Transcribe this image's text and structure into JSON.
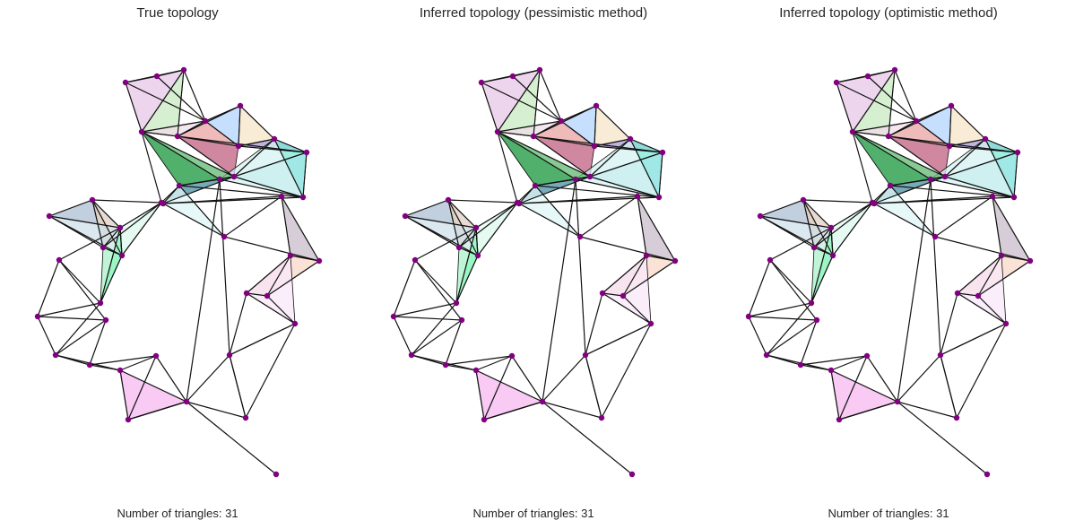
{
  "node_color": "#800080",
  "panels": [
    {
      "title": "True topology",
      "caption": "Number of triangles: 31"
    },
    {
      "title": "Inferred topology (pessimistic method)",
      "caption": "Number of triangles: 31"
    },
    {
      "title": "Inferred topology (optimistic method)",
      "caption": "Number of triangles: 31"
    }
  ],
  "graph": {
    "nodes": [
      {
        "id": "n0"
      },
      {
        "id": "n1"
      },
      {
        "id": "n2"
      },
      {
        "id": "n3"
      },
      {
        "id": "n4"
      },
      {
        "id": "n5"
      },
      {
        "id": "n6"
      },
      {
        "id": "n7"
      },
      {
        "id": "n8"
      },
      {
        "id": "n9"
      },
      {
        "id": "n10"
      },
      {
        "id": "n11"
      },
      {
        "id": "n12"
      },
      {
        "id": "n13"
      },
      {
        "id": "n14"
      },
      {
        "id": "n15"
      },
      {
        "id": "n16"
      },
      {
        "id": "n17"
      },
      {
        "id": "n18"
      },
      {
        "id": "n19"
      },
      {
        "id": "n20"
      },
      {
        "id": "n21"
      },
      {
        "id": "n22"
      },
      {
        "id": "n23"
      },
      {
        "id": "n24"
      },
      {
        "id": "n25"
      },
      {
        "id": "n26"
      },
      {
        "id": "n27"
      },
      {
        "id": "n28"
      },
      {
        "id": "n29"
      },
      {
        "id": "n30"
      },
      {
        "id": "n31"
      },
      {
        "id": "n32"
      },
      {
        "id": "n33"
      },
      {
        "id": "n34"
      },
      {
        "id": "n35"
      },
      {
        "id": "n36"
      },
      {
        "id": "n37"
      },
      {
        "id": "n38"
      },
      {
        "id": "n39"
      },
      {
        "id": "n40"
      },
      {
        "id": "n41"
      },
      {
        "id": "n42"
      },
      {
        "id": "n43"
      }
    ],
    "edges": [
      [
        "n0",
        "n1"
      ],
      [
        "n1",
        "n2"
      ],
      [
        "n0",
        "n2"
      ],
      [
        "n0",
        "n3"
      ],
      [
        "n1",
        "n3"
      ],
      [
        "n2",
        "n3"
      ],
      [
        "n0",
        "n5"
      ],
      [
        "n2",
        "n4"
      ],
      [
        "n2",
        "n5"
      ],
      [
        "n3",
        "n5"
      ],
      [
        "n3",
        "n4"
      ],
      [
        "n3",
        "n6"
      ],
      [
        "n3",
        "n7"
      ],
      [
        "n4",
        "n5"
      ],
      [
        "n4",
        "n6"
      ],
      [
        "n4",
        "n7"
      ],
      [
        "n4",
        "n9"
      ],
      [
        "n4",
        "n10"
      ],
      [
        "n6",
        "n7"
      ],
      [
        "n6",
        "n8"
      ],
      [
        "n7",
        "n8"
      ],
      [
        "n7",
        "n9"
      ],
      [
        "n8",
        "n9"
      ],
      [
        "n8",
        "n10"
      ],
      [
        "n9",
        "n10"
      ],
      [
        "n9",
        "n11"
      ],
      [
        "n8",
        "n11"
      ],
      [
        "n10",
        "n11"
      ],
      [
        "n10",
        "n12"
      ],
      [
        "n10",
        "n13"
      ],
      [
        "n11",
        "n13"
      ],
      [
        "n11",
        "n12"
      ],
      [
        "n5",
        "n12"
      ],
      [
        "n12",
        "n13"
      ],
      [
        "n13",
        "n14"
      ],
      [
        "n10",
        "n14"
      ],
      [
        "n11",
        "n14"
      ],
      [
        "n5",
        "n10"
      ],
      [
        "n14",
        "n15"
      ],
      [
        "n13",
        "n15"
      ],
      [
        "n15",
        "n16"
      ],
      [
        "n14",
        "n16"
      ],
      [
        "n16",
        "n17"
      ],
      [
        "n15",
        "n17"
      ],
      [
        "n17",
        "n18"
      ],
      [
        "n16",
        "n18"
      ],
      [
        "n18",
        "n19"
      ],
      [
        "n17",
        "n19"
      ],
      [
        "n18",
        "n20"
      ],
      [
        "n19",
        "n20"
      ],
      [
        "n20",
        "n21"
      ],
      [
        "n19",
        "n21"
      ],
      [
        "n21",
        "n22"
      ],
      [
        "n20",
        "n22"
      ],
      [
        "n5",
        "n23"
      ],
      [
        "n13",
        "n23"
      ],
      [
        "n23",
        "n24"
      ],
      [
        "n24",
        "n25"
      ],
      [
        "n25",
        "n26"
      ],
      [
        "n24",
        "n26"
      ],
      [
        "n25",
        "n27"
      ],
      [
        "n26",
        "n27"
      ],
      [
        "n24",
        "n27"
      ],
      [
        "n23",
        "n27"
      ],
      [
        "n25",
        "n28"
      ],
      [
        "n26",
        "n28"
      ],
      [
        "n27",
        "n28"
      ],
      [
        "n26",
        "n29"
      ],
      [
        "n28",
        "n29"
      ],
      [
        "n28",
        "n30"
      ],
      [
        "n29",
        "n30"
      ],
      [
        "n29",
        "n31"
      ],
      [
        "n30",
        "n31"
      ],
      [
        "n30",
        "n32"
      ],
      [
        "n31",
        "n32"
      ],
      [
        "n30",
        "n34"
      ],
      [
        "n31",
        "n33"
      ],
      [
        "n32",
        "n33"
      ],
      [
        "n32",
        "n34"
      ],
      [
        "n33",
        "n34"
      ],
      [
        "n33",
        "n35"
      ],
      [
        "n34",
        "n35"
      ],
      [
        "n35",
        "n36"
      ],
      [
        "n34",
        "n36"
      ],
      [
        "n36",
        "n37"
      ],
      [
        "n35",
        "n37"
      ],
      [
        "n36",
        "n38"
      ],
      [
        "n37",
        "n38"
      ],
      [
        "n38",
        "n39"
      ],
      [
        "n37",
        "n39"
      ],
      [
        "n36",
        "n39"
      ],
      [
        "n39",
        "n40"
      ],
      [
        "n22",
        "n40"
      ],
      [
        "n40",
        "n41"
      ],
      [
        "n22",
        "n41"
      ],
      [
        "n21",
        "n41"
      ],
      [
        "n41",
        "n42"
      ],
      [
        "n22",
        "n42"
      ],
      [
        "n21",
        "n42"
      ],
      [
        "n12",
        "n42"
      ],
      [
        "n12",
        "n40"
      ],
      [
        "n40",
        "n43"
      ],
      [
        "n23",
        "n29"
      ],
      [
        "n23",
        "n28"
      ],
      [
        "n24",
        "n28"
      ],
      [
        "n38",
        "n40"
      ]
    ],
    "triangles": [
      {
        "nodes": [
          "n0",
          "n1",
          "n2"
        ],
        "color": "#d4e6b5"
      },
      {
        "nodes": [
          "n0",
          "n2",
          "n5"
        ],
        "color": "#e7c7e8"
      },
      {
        "nodes": [
          "n2",
          "n4",
          "n5"
        ],
        "color": "#c7e9c0"
      },
      {
        "nodes": [
          "n3",
          "n4",
          "n5"
        ],
        "color": "#f0dcea"
      },
      {
        "nodes": [
          "n3",
          "n6",
          "n7"
        ],
        "color": "#b3d4ff"
      },
      {
        "nodes": [
          "n3",
          "n4",
          "n7"
        ],
        "color": "#e9a3a3"
      },
      {
        "nodes": [
          "n4",
          "n7",
          "n10"
        ],
        "color": "#c06080"
      },
      {
        "nodes": [
          "n3",
          "n6",
          "n4"
        ],
        "color": "#b98aa8"
      },
      {
        "nodes": [
          "n6",
          "n7",
          "n8"
        ],
        "color": "#f5e6c8"
      },
      {
        "nodes": [
          "n7",
          "n8",
          "n9"
        ],
        "color": "#a99ad6"
      },
      {
        "nodes": [
          "n8",
          "n9",
          "n11"
        ],
        "color": "#7fe8d8"
      },
      {
        "nodes": [
          "n9",
          "n10",
          "n11"
        ],
        "color": "#9fe6e6"
      },
      {
        "nodes": [
          "n8",
          "n11",
          "n12"
        ],
        "color": "#d6f2f2"
      },
      {
        "nodes": [
          "n5",
          "n10",
          "n13"
        ],
        "color": "#5fb86f"
      },
      {
        "nodes": [
          "n10",
          "n12",
          "n13"
        ],
        "color": "#8fbfa0"
      },
      {
        "nodes": [
          "n5",
          "n12",
          "n13"
        ],
        "color": "#3fa85f"
      },
      {
        "nodes": [
          "n13",
          "n14",
          "n10"
        ],
        "color": "#4a8fa0"
      },
      {
        "nodes": [
          "n14",
          "n15",
          "n13"
        ],
        "color": "#dff5f5"
      },
      {
        "nodes": [
          "n16",
          "n17",
          "n18"
        ],
        "color": "#c9bccb"
      },
      {
        "nodes": [
          "n17",
          "n18",
          "n19"
        ],
        "color": "#f8d8c8"
      },
      {
        "nodes": [
          "n18",
          "n19",
          "n20"
        ],
        "color": "#f3c9c0"
      },
      {
        "nodes": [
          "n18",
          "n20",
          "n21"
        ],
        "color": "#f8e8fa"
      },
      {
        "nodes": [
          "n24",
          "n25",
          "n26"
        ],
        "color": "#aebfd4"
      },
      {
        "nodes": [
          "n24",
          "n26",
          "n27"
        ],
        "color": "#f5ddd0"
      },
      {
        "nodes": [
          "n24",
          "n27",
          "n28"
        ],
        "color": "#d9cfc0"
      },
      {
        "nodes": [
          "n25",
          "n26",
          "n28"
        ],
        "color": "#cfe0ea"
      },
      {
        "nodes": [
          "n23",
          "n27",
          "n28"
        ],
        "color": "#d8f5e8"
      },
      {
        "nodes": [
          "n27",
          "n28",
          "n30"
        ],
        "color": "#aaf0c8"
      },
      {
        "nodes": [
          "n28",
          "n29",
          "n30"
        ],
        "color": "#8ff5bf"
      },
      {
        "nodes": [
          "n36",
          "n38",
          "n39"
        ],
        "color": "#f5b8f0"
      },
      {
        "nodes": [
          "n23",
          "n28",
          "n29"
        ],
        "color": "#e6fbf2"
      }
    ]
  }
}
